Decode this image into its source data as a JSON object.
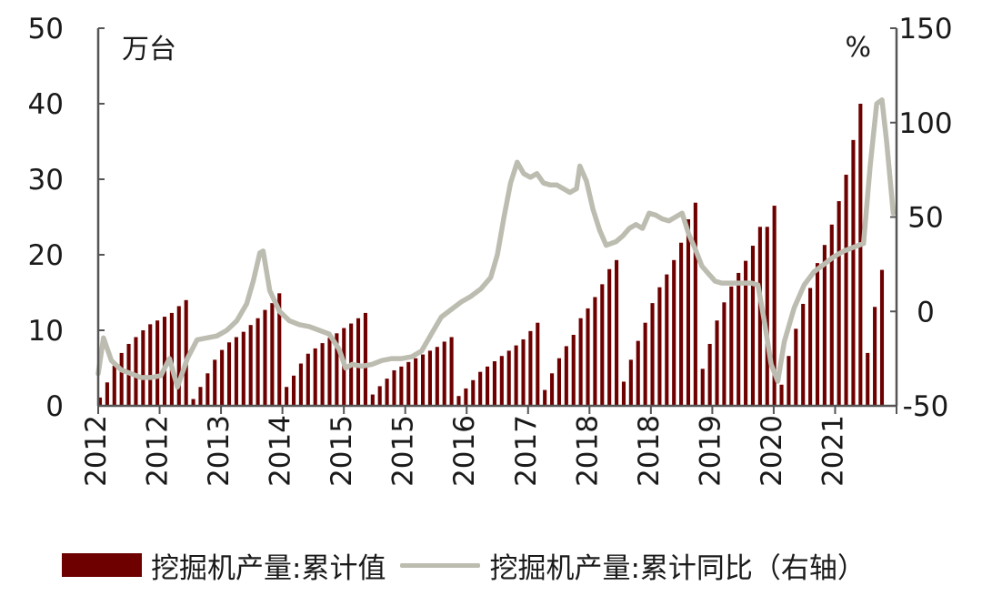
{
  "colors": {
    "bar": "#6e0000",
    "line": "#bdbcb0",
    "axis": "#555555",
    "text": "#1a1a1a"
  },
  "chart_data": {
    "type": "bar+line",
    "left_unit": "万台",
    "right_unit": "%",
    "y_left": {
      "range": [
        0,
        50
      ],
      "ticks": [
        "50",
        "40",
        "30",
        "20",
        "10",
        "0"
      ]
    },
    "y_right": {
      "range": [
        -50,
        150
      ],
      "ticks": [
        "150",
        "100",
        "50",
        "0",
        "-50"
      ]
    },
    "x_tick_labels": [
      "2012",
      "2012",
      "2013",
      "2014",
      "2015",
      "2015",
      "2016",
      "2017",
      "2018",
      "2018",
      "2019",
      "2020",
      "2021"
    ],
    "series": [
      {
        "name": "挖掘机产量:累计值",
        "type": "bar",
        "axis": "left",
        "values": [
          1.1,
          3.1,
          5.3,
          7.0,
          8.2,
          9.1,
          10.0,
          10.8,
          11.3,
          11.8,
          12.3,
          13.2,
          14.0,
          0.9,
          2.5,
          4.3,
          6.1,
          7.4,
          8.4,
          9.1,
          9.8,
          10.7,
          11.6,
          12.7,
          13.6,
          14.9,
          2.5,
          4.0,
          5.6,
          6.9,
          7.6,
          8.3,
          9.0,
          9.6,
          10.3,
          10.9,
          11.6,
          12.3,
          1.5,
          2.6,
          3.6,
          4.7,
          5.2,
          5.8,
          6.3,
          6.8,
          7.3,
          7.8,
          8.5,
          9.1,
          1.3,
          2.3,
          3.4,
          4.5,
          5.2,
          5.9,
          6.6,
          7.3,
          8.0,
          8.8,
          9.9,
          11.0,
          2.1,
          4.3,
          6.3,
          7.9,
          9.4,
          11.6,
          12.9,
          14.4,
          16.1,
          18.1,
          19.3,
          3.2,
          6.1,
          8.6,
          11.0,
          13.6,
          15.7,
          17.4,
          19.3,
          21.6,
          24.7,
          26.9,
          4.9,
          8.2,
          11.3,
          13.7,
          15.8,
          17.6,
          19.2,
          21.2,
          23.7,
          23.7,
          26.5,
          2.8,
          6.6,
          10.2,
          13.5,
          15.6,
          18.9,
          21.3,
          24.0,
          27.1,
          30.6,
          35.2,
          40.0,
          7.0,
          13.1,
          18.0
        ]
      },
      {
        "name": "挖掘机产量:累计同比（右轴）",
        "type": "line",
        "axis": "right",
        "points": [
          [
            0.0,
            -33
          ],
          [
            0.8,
            -14
          ],
          [
            2.0,
            -26
          ],
          [
            3.5,
            -31
          ],
          [
            5.0,
            -33
          ],
          [
            6.5,
            -35
          ],
          [
            8.0,
            -35
          ],
          [
            9.5,
            -34
          ],
          [
            10.8,
            -25
          ],
          [
            12.0,
            -40
          ],
          [
            13.5,
            -25
          ],
          [
            15.0,
            -15
          ],
          [
            16.5,
            -14
          ],
          [
            18.0,
            -13
          ],
          [
            19.5,
            -10
          ],
          [
            21.0,
            -5
          ],
          [
            22.5,
            4
          ],
          [
            23.5,
            16
          ],
          [
            24.5,
            31
          ],
          [
            25.0,
            32
          ],
          [
            26.0,
            11
          ],
          [
            27.5,
            0
          ],
          [
            29.0,
            -5
          ],
          [
            30.5,
            -7
          ],
          [
            32.0,
            -8
          ],
          [
            33.5,
            -10
          ],
          [
            35.0,
            -12
          ],
          [
            36.5,
            -20
          ],
          [
            37.5,
            -30
          ],
          [
            38.5,
            -28
          ],
          [
            40.0,
            -29
          ],
          [
            41.5,
            -28
          ],
          [
            43.0,
            -26
          ],
          [
            44.5,
            -25
          ],
          [
            46.0,
            -25
          ],
          [
            47.5,
            -24
          ],
          [
            49.0,
            -21
          ],
          [
            50.5,
            -12
          ],
          [
            52.0,
            -3
          ],
          [
            53.5,
            1
          ],
          [
            55.0,
            5
          ],
          [
            56.5,
            8
          ],
          [
            58.0,
            12
          ],
          [
            59.5,
            18
          ],
          [
            60.5,
            30
          ],
          [
            61.5,
            50
          ],
          [
            62.5,
            68
          ],
          [
            63.5,
            79
          ],
          [
            64.5,
            73
          ],
          [
            65.5,
            71
          ],
          [
            66.5,
            73
          ],
          [
            67.5,
            68
          ],
          [
            68.5,
            67
          ],
          [
            69.5,
            67
          ],
          [
            70.5,
            65
          ],
          [
            71.5,
            63
          ],
          [
            72.5,
            65
          ],
          [
            73.0,
            77
          ],
          [
            74.0,
            69
          ],
          [
            75.0,
            54
          ],
          [
            76.0,
            43
          ],
          [
            77.0,
            35
          ],
          [
            78.5,
            37
          ],
          [
            79.5,
            40
          ],
          [
            80.5,
            44
          ],
          [
            81.5,
            46
          ],
          [
            82.5,
            44
          ],
          [
            83.5,
            52
          ],
          [
            84.5,
            51
          ],
          [
            85.5,
            49
          ],
          [
            86.5,
            48
          ],
          [
            87.5,
            50
          ],
          [
            88.5,
            52
          ],
          [
            89.5,
            41
          ],
          [
            90.5,
            33
          ],
          [
            91.5,
            24
          ],
          [
            92.5,
            20
          ],
          [
            93.5,
            16
          ],
          [
            94.5,
            15
          ],
          [
            96.0,
            15
          ],
          [
            97.5,
            15
          ],
          [
            99.0,
            15
          ],
          [
            100.0,
            14
          ],
          [
            101.0,
            -6
          ],
          [
            102.0,
            -28
          ],
          [
            103.0,
            -37
          ],
          [
            104.0,
            -16
          ],
          [
            105.5,
            2
          ],
          [
            107.0,
            14
          ],
          [
            108.5,
            21
          ],
          [
            110.0,
            25
          ],
          [
            111.5,
            29
          ],
          [
            113.0,
            32
          ],
          [
            114.5,
            34
          ],
          [
            116.0,
            36
          ],
          [
            117.0,
            77
          ],
          [
            118.0,
            110
          ],
          [
            118.8,
            112
          ],
          [
            119.5,
            90
          ],
          [
            120.5,
            52
          ]
        ]
      }
    ],
    "legend": [
      "挖掘机产量:累计值",
      "挖掘机产量:累计同比（右轴）"
    ],
    "legend_position": "bottom",
    "grid": false
  }
}
